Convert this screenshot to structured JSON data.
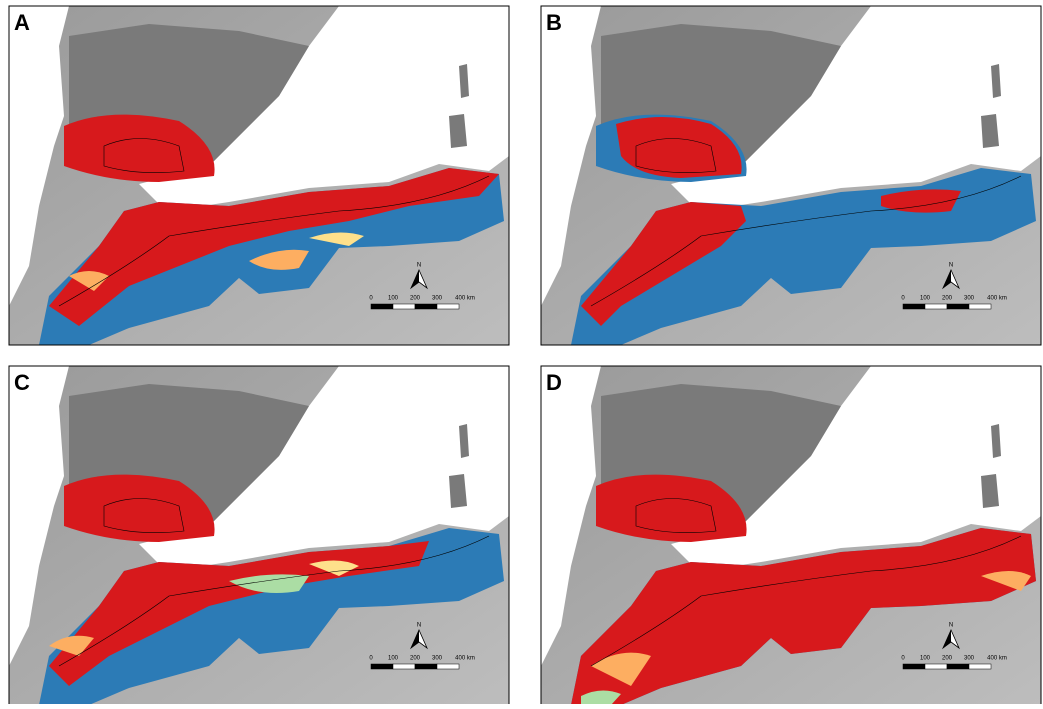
{
  "panels": [
    {
      "label": "A"
    },
    {
      "label": "B"
    },
    {
      "label": "C"
    },
    {
      "label": "D"
    }
  ],
  "scale_bar": {
    "labels": [
      "0",
      "100",
      "200",
      "300",
      "400 km"
    ]
  },
  "north_label": "N"
}
